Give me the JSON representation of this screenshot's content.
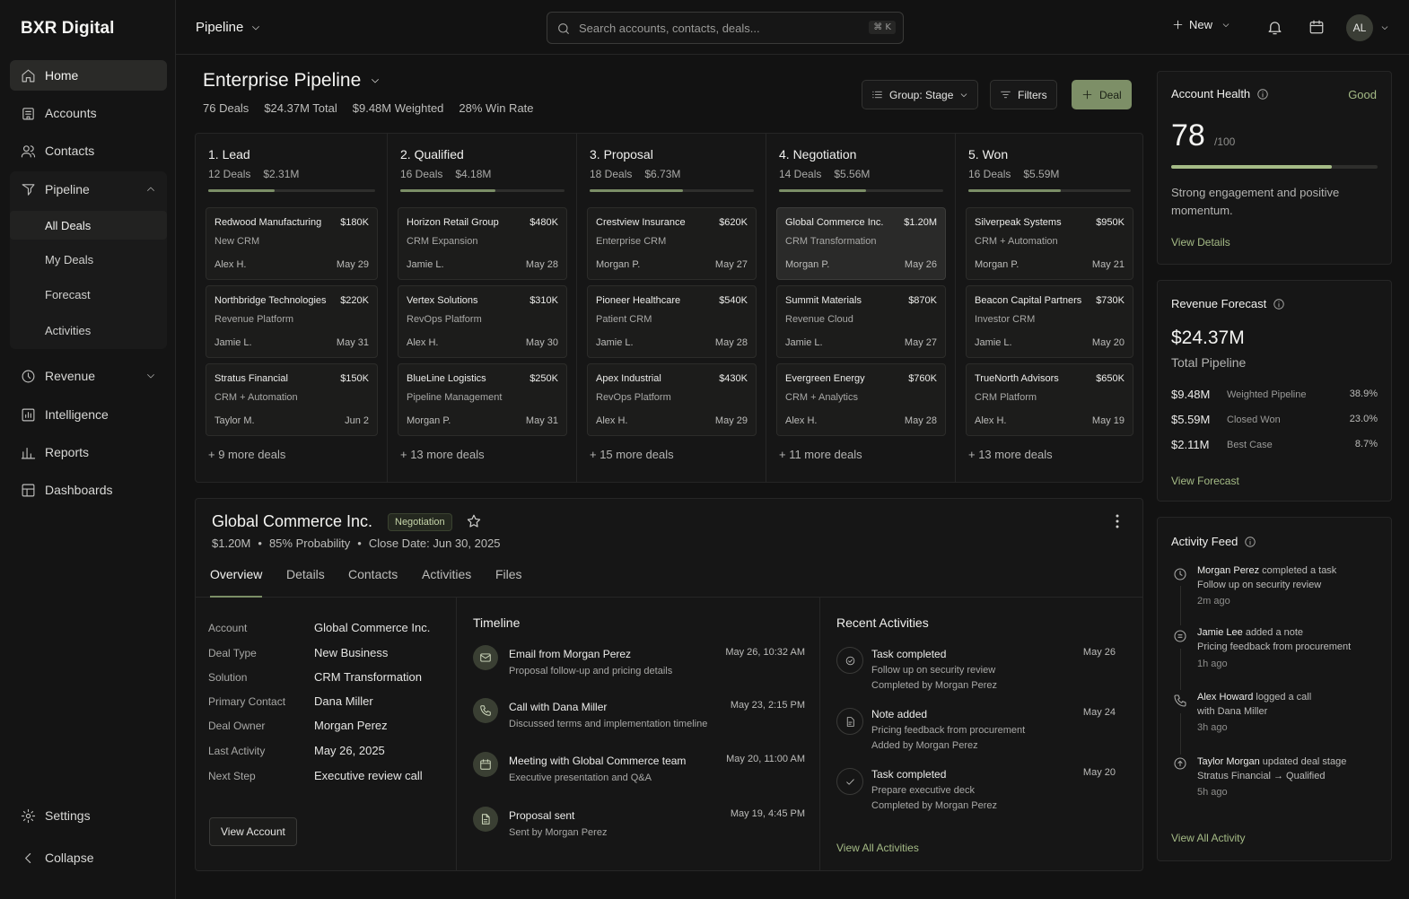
{
  "sidebar": {
    "brand": "BXR Digital",
    "items": [
      {
        "label": "Home",
        "icon": "home-icon"
      },
      {
        "label": "Accounts",
        "icon": "building-icon"
      },
      {
        "label": "Contacts",
        "icon": "users-icon"
      },
      {
        "label": "Pipeline",
        "icon": "filter-icon"
      },
      {
        "label": "Revenue",
        "icon": "clock-icon"
      },
      {
        "label": "Intelligence",
        "icon": "chart-box-icon"
      },
      {
        "label": "Reports",
        "icon": "bar-chart-icon"
      },
      {
        "label": "Dashboards",
        "icon": "grid-icon"
      }
    ],
    "pipeline_sub": [
      "All Deals",
      "My Deals",
      "Forecast",
      "Activities"
    ],
    "settings": "Settings",
    "collapse": "Collapse"
  },
  "topbar": {
    "breadcrumb": "Pipeline",
    "search_placeholder": "Search accounts, contacts, deals...",
    "search_shortcut": "⌘ K",
    "new_label": "New",
    "avatar_initials": "AL"
  },
  "header": {
    "title": "Enterprise Pipeline",
    "deals": "76 Deals",
    "total": "$24.37M Total",
    "weighted": "$9.48M Weighted",
    "win_rate": "28% Win Rate",
    "group_label": "Group: Stage",
    "filters_label": "Filters",
    "deal_label": "Deal"
  },
  "columns": [
    {
      "title": "1. Lead",
      "count": "12 Deals",
      "amount": "$2.31M",
      "progress": 0.4,
      "more": "+ 9 more deals",
      "cards": [
        {
          "name": "Redwood Manufacturing",
          "amount": "$180K",
          "product": "New CRM",
          "owner": "Alex H.",
          "date": "May 29"
        },
        {
          "name": "Northbridge Technologies",
          "amount": "$220K",
          "product": "Revenue Platform",
          "owner": "Jamie L.",
          "date": "May 31"
        },
        {
          "name": "Stratus Financial",
          "amount": "$150K",
          "product": "CRM + Automation",
          "owner": "Taylor M.",
          "date": "Jun 2"
        }
      ]
    },
    {
      "title": "2. Qualified",
      "count": "16 Deals",
      "amount": "$4.18M",
      "progress": 0.58,
      "more": "+ 13 more deals",
      "cards": [
        {
          "name": "Horizon Retail Group",
          "amount": "$480K",
          "product": "CRM Expansion",
          "owner": "Jamie L.",
          "date": "May 28"
        },
        {
          "name": "Vertex Solutions",
          "amount": "$310K",
          "product": "RevOps Platform",
          "owner": "Alex H.",
          "date": "May 30"
        },
        {
          "name": "BlueLine Logistics",
          "amount": "$250K",
          "product": "Pipeline Management",
          "owner": "Morgan P.",
          "date": "May 31"
        }
      ]
    },
    {
      "title": "3. Proposal",
      "count": "18 Deals",
      "amount": "$6.73M",
      "progress": 0.57,
      "more": "+ 15 more deals",
      "cards": [
        {
          "name": "Crestview Insurance",
          "amount": "$620K",
          "product": "Enterprise CRM",
          "owner": "Morgan P.",
          "date": "May 27"
        },
        {
          "name": "Pioneer Healthcare",
          "amount": "$540K",
          "product": "Patient CRM",
          "owner": "Jamie L.",
          "date": "May 28"
        },
        {
          "name": "Apex Industrial",
          "amount": "$430K",
          "product": "RevOps Platform",
          "owner": "Alex H.",
          "date": "May 29"
        }
      ]
    },
    {
      "title": "4. Negotiation",
      "count": "14 Deals",
      "amount": "$5.56M",
      "progress": 0.53,
      "more": "+ 11 more deals",
      "cards": [
        {
          "name": "Global Commerce Inc.",
          "amount": "$1.20M",
          "product": "CRM Transformation",
          "owner": "Morgan P.",
          "date": "May 26",
          "selected": true
        },
        {
          "name": "Summit Materials",
          "amount": "$870K",
          "product": "Revenue Cloud",
          "owner": "Jamie L.",
          "date": "May 27"
        },
        {
          "name": "Evergreen Energy",
          "amount": "$760K",
          "product": "CRM + Analytics",
          "owner": "Alex H.",
          "date": "May 28"
        }
      ]
    },
    {
      "title": "5. Won",
      "count": "16 Deals",
      "amount": "$5.59M",
      "progress": 0.57,
      "more": "+ 13 more deals",
      "cards": [
        {
          "name": "Silverpeak Systems",
          "amount": "$950K",
          "product": "CRM + Automation",
          "owner": "Morgan P.",
          "date": "May 21"
        },
        {
          "name": "Beacon Capital Partners",
          "amount": "$730K",
          "product": "Investor CRM",
          "owner": "Jamie L.",
          "date": "May 20"
        },
        {
          "name": "TrueNorth Advisors",
          "amount": "$650K",
          "product": "CRM Platform",
          "owner": "Alex H.",
          "date": "May 19"
        }
      ]
    }
  ],
  "detail": {
    "name": "Global Commerce Inc.",
    "stage_badge": "Negotiation",
    "amount": "$1.20M",
    "probability": "85% Probability",
    "close_date": "Close Date: Jun 30, 2025",
    "tabs": [
      "Overview",
      "Details",
      "Contacts",
      "Activities",
      "Files"
    ],
    "fields": [
      {
        "k": "Account",
        "v": "Global Commerce Inc."
      },
      {
        "k": "Deal Type",
        "v": "New Business"
      },
      {
        "k": "Solution",
        "v": "CRM Transformation"
      },
      {
        "k": "Primary Contact",
        "v": "Dana Miller"
      },
      {
        "k": "Deal Owner",
        "v": "Morgan Perez"
      },
      {
        "k": "Last Activity",
        "v": "May 26, 2025"
      },
      {
        "k": "Next Step",
        "v": "Executive review call"
      }
    ],
    "view_account": "View Account",
    "timeline_title": "Timeline",
    "timeline": [
      {
        "icon": "mail-icon",
        "title": "Email from Morgan Perez",
        "sub": "Proposal follow-up and pricing details",
        "date": "May 26, 10:32 AM"
      },
      {
        "icon": "phone-icon",
        "title": "Call with Dana Miller",
        "sub": "Discussed terms and implementation timeline",
        "date": "May 23, 2:15 PM"
      },
      {
        "icon": "calendar-icon",
        "title": "Meeting with Global Commerce team",
        "sub": "Executive presentation and Q&A",
        "date": "May 20, 11:00 AM"
      },
      {
        "icon": "document-icon",
        "title": "Proposal sent",
        "sub": "Sent by Morgan Perez",
        "date": "May 19, 4:45 PM"
      }
    ],
    "recent_title": "Recent Activities",
    "recent": [
      {
        "icon": "check-circle-icon",
        "title": "Task completed",
        "line1": "Follow up on security review",
        "line2": "Completed by Morgan Perez",
        "date": "May 26"
      },
      {
        "icon": "note-icon",
        "title": "Note added",
        "line1": "Pricing feedback from procurement",
        "line2": "Added by Morgan Perez",
        "date": "May 24"
      },
      {
        "icon": "check-icon",
        "title": "Task completed",
        "line1": "Prepare executive deck",
        "line2": "Completed by Morgan Perez",
        "date": "May 20"
      }
    ],
    "view_all_activities": "View All Activities"
  },
  "health": {
    "title": "Account Health",
    "status": "Good",
    "score": "78",
    "max": "/100",
    "level": 0.78,
    "description": "Strong engagement and positive momentum.",
    "link": "View Details"
  },
  "forecast": {
    "title": "Revenue Forecast",
    "value": "$24.37M",
    "label": "Total Pipeline",
    "rows": [
      {
        "value": "$9.48M",
        "label": "Weighted Pipeline",
        "pct": "38.9%"
      },
      {
        "value": "$5.59M",
        "label": "Closed Won",
        "pct": "23.0%"
      },
      {
        "value": "$2.11M",
        "label": "Best Case",
        "pct": "8.7%"
      }
    ],
    "link": "View Forecast"
  },
  "feed": {
    "title": "Activity Feed",
    "items": [
      {
        "who": "Morgan Perez",
        "action": " completed a task",
        "detail": "Follow up on security review",
        "ago": "2m ago",
        "icon": "clock-icon"
      },
      {
        "who": "Jamie Lee",
        "action": " added a note",
        "detail": "Pricing feedback from procurement",
        "ago": "1h ago",
        "icon": "note-icon"
      },
      {
        "who": "Alex Howard",
        "action": " logged a call",
        "detail": "with Dana Miller",
        "ago": "3h ago",
        "icon": "phone-icon"
      },
      {
        "who": "Taylor Morgan",
        "action": " updated deal stage",
        "detail": "Stratus Financial → Qualified",
        "ago": "5h ago",
        "icon": "arrow-up-icon"
      }
    ],
    "link": "View All Activity"
  }
}
